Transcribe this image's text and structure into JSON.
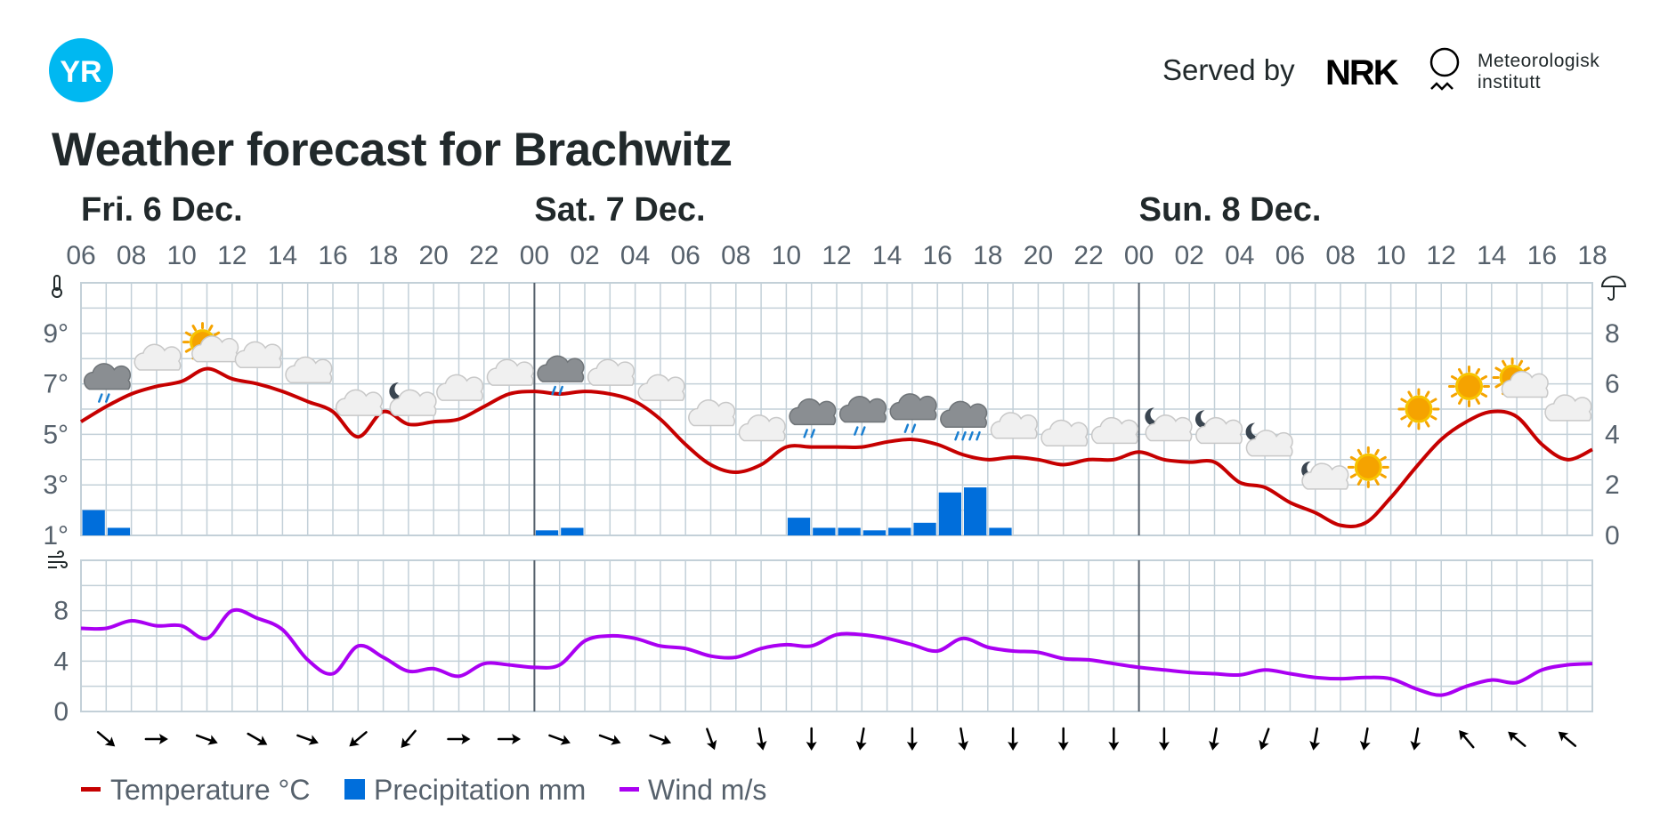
{
  "header": {
    "served_by": "Served by",
    "nrk_logo": "NRK",
    "met_line1": "Meteorologisk",
    "met_line2": "institutt",
    "yr_logo": "YR"
  },
  "title": "Weather forecast for Brachwitz",
  "legend": {
    "temperature": "Temperature °C",
    "precipitation": "Precipitation mm",
    "wind": "Wind m/s"
  },
  "colors": {
    "temperature": "#c60000",
    "precipitation": "#006edb",
    "wind": "#aa00f2",
    "yr": "#00b8f1",
    "grid": "#c3d0d8"
  },
  "chart_data": {
    "type": "line",
    "days": [
      {
        "label": "Fri. 6 Dec.",
        "start_hour": 6
      },
      {
        "label": "Sat. 7 Dec.",
        "start_hour": 24
      },
      {
        "label": "Sun. 8 Dec.",
        "start_hour": 48
      }
    ],
    "x_ticks": [
      "06",
      "08",
      "10",
      "12",
      "14",
      "16",
      "18",
      "20",
      "22",
      "00",
      "02",
      "04",
      "06",
      "08",
      "10",
      "12",
      "14",
      "16",
      "18",
      "20",
      "22",
      "00",
      "02",
      "04",
      "06",
      "08",
      "10",
      "12",
      "14",
      "16",
      "18"
    ],
    "x_unit": "hours from Fri. 00",
    "x_range": [
      6,
      66
    ],
    "temperature": {
      "y_ticks": [
        "9°",
        "7°",
        "5°",
        "3°",
        "1°"
      ],
      "ylim": [
        1,
        11
      ],
      "x": [
        6,
        7,
        8,
        9,
        10,
        11,
        12,
        13,
        14,
        15,
        16,
        17,
        18,
        19,
        20,
        21,
        22,
        23,
        24,
        25,
        26,
        27,
        28,
        29,
        30,
        31,
        32,
        33,
        34,
        35,
        36,
        37,
        38,
        39,
        40,
        41,
        42,
        43,
        44,
        45,
        46,
        47,
        48,
        49,
        50,
        51,
        52,
        53,
        54,
        55,
        56,
        57,
        58,
        59,
        60,
        61,
        62,
        63,
        64,
        65,
        66
      ],
      "values": [
        5.5,
        6.1,
        6.6,
        6.9,
        7.1,
        7.6,
        7.2,
        7.0,
        6.7,
        6.3,
        5.9,
        4.9,
        5.9,
        5.4,
        5.5,
        5.6,
        6.1,
        6.6,
        6.7,
        6.6,
        6.7,
        6.6,
        6.3,
        5.6,
        4.6,
        3.8,
        3.5,
        3.8,
        4.5,
        4.5,
        4.5,
        4.5,
        4.7,
        4.8,
        4.6,
        4.2,
        4.0,
        4.1,
        4.0,
        3.8,
        4.0,
        4.0,
        4.3,
        4.0,
        3.9,
        3.9,
        3.1,
        2.9,
        2.3,
        1.9,
        1.4,
        1.5,
        2.5,
        3.7,
        4.8,
        5.5,
        5.9,
        5.7,
        4.6,
        4.0,
        4.4
      ]
    },
    "precipitation": {
      "y_ticks": [
        "8",
        "6",
        "4",
        "2",
        "0"
      ],
      "ylim": [
        0,
        10
      ],
      "bars": [
        {
          "start": 6,
          "value": 1.0
        },
        {
          "start": 7,
          "value": 0.3
        },
        {
          "start": 24,
          "value": 0.2
        },
        {
          "start": 25,
          "value": 0.3
        },
        {
          "start": 34,
          "value": 0.7
        },
        {
          "start": 35,
          "value": 0.3
        },
        {
          "start": 36,
          "value": 0.3
        },
        {
          "start": 37,
          "value": 0.2
        },
        {
          "start": 38,
          "value": 0.3
        },
        {
          "start": 39,
          "value": 0.5
        },
        {
          "start": 40,
          "value": 1.7
        },
        {
          "start": 41,
          "value": 1.9
        },
        {
          "start": 42,
          "value": 0.3
        }
      ]
    },
    "wind": {
      "y_ticks": [
        "8",
        "4",
        "0"
      ],
      "ylim": [
        0,
        12
      ],
      "x": [
        6,
        7,
        8,
        9,
        10,
        11,
        12,
        13,
        14,
        15,
        16,
        17,
        18,
        19,
        20,
        21,
        22,
        23,
        24,
        25,
        26,
        27,
        28,
        29,
        30,
        31,
        32,
        33,
        34,
        35,
        36,
        37,
        38,
        39,
        40,
        41,
        42,
        43,
        44,
        45,
        46,
        47,
        48,
        49,
        50,
        51,
        52,
        53,
        54,
        55,
        56,
        57,
        58,
        59,
        60,
        61,
        62,
        63,
        64,
        65,
        66
      ],
      "values": [
        6.6,
        6.6,
        7.2,
        6.8,
        6.8,
        5.8,
        8.0,
        7.4,
        6.5,
        4.1,
        3.0,
        5.2,
        4.3,
        3.2,
        3.4,
        2.8,
        3.8,
        3.7,
        3.5,
        3.7,
        5.6,
        6.0,
        5.8,
        5.2,
        5.0,
        4.4,
        4.3,
        5.0,
        5.3,
        5.2,
        6.1,
        6.1,
        5.8,
        5.3,
        4.8,
        5.8,
        5.1,
        4.8,
        4.7,
        4.2,
        4.1,
        3.8,
        3.5,
        3.3,
        3.1,
        3.0,
        2.9,
        3.3,
        3.0,
        2.7,
        2.6,
        2.7,
        2.6,
        1.8,
        1.3,
        2.0,
        2.5,
        2.3,
        3.3,
        3.7,
        3.8
      ]
    },
    "wind_arrows": [
      40,
      0,
      20,
      30,
      20,
      140,
      130,
      0,
      0,
      20,
      20,
      20,
      70,
      80,
      90,
      100,
      90,
      80,
      90,
      90,
      90,
      90,
      100,
      110,
      100,
      100,
      100,
      230,
      220,
      220
    ],
    "weather_icons": [
      {
        "hour": 7,
        "icon": "rain-cloud-icon",
        "temp": 7.0
      },
      {
        "hour": 9,
        "icon": "cloud-icon",
        "temp": 7.9
      },
      {
        "hour": 11,
        "icon": "partly-sunny-icon",
        "temp": 8.3
      },
      {
        "hour": 13,
        "icon": "cloud-icon",
        "temp": 8.0
      },
      {
        "hour": 15,
        "icon": "cloud-icon",
        "temp": 7.4
      },
      {
        "hour": 17,
        "icon": "cloud-icon",
        "temp": 6.1
      },
      {
        "hour": 19,
        "icon": "night-cloud-icon",
        "temp": 6.1
      },
      {
        "hour": 21,
        "icon": "cloud-icon",
        "temp": 6.7
      },
      {
        "hour": 23,
        "icon": "cloud-icon",
        "temp": 7.3
      },
      {
        "hour": 25,
        "icon": "rain-cloud-icon",
        "temp": 7.3
      },
      {
        "hour": 27,
        "icon": "cloud-icon",
        "temp": 7.3
      },
      {
        "hour": 29,
        "icon": "cloud-icon",
        "temp": 6.7
      },
      {
        "hour": 31,
        "icon": "cloud-icon",
        "temp": 5.7
      },
      {
        "hour": 33,
        "icon": "cloud-icon",
        "temp": 5.1
      },
      {
        "hour": 35,
        "icon": "rain-cloud-icon",
        "temp": 5.6
      },
      {
        "hour": 37,
        "icon": "rain-cloud-icon",
        "temp": 5.7
      },
      {
        "hour": 39,
        "icon": "rain-cloud-icon",
        "temp": 5.8
      },
      {
        "hour": 41,
        "icon": "rain-cloud-icon",
        "temp": 5.5
      },
      {
        "hour": 43,
        "icon": "cloud-icon",
        "temp": 5.2
      },
      {
        "hour": 45,
        "icon": "cloud-icon",
        "temp": 4.9
      },
      {
        "hour": 47,
        "icon": "cloud-icon",
        "temp": 5.0
      },
      {
        "hour": 49,
        "icon": "night-cloud-icon",
        "temp": 5.1
      },
      {
        "hour": 51,
        "icon": "night-cloud-icon",
        "temp": 5.0
      },
      {
        "hour": 53,
        "icon": "night-cloud-icon",
        "temp": 4.5
      },
      {
        "hour": 55,
        "icon": "night-partly-icon",
        "temp": 3.4
      },
      {
        "hour": 57,
        "icon": "sun-icon",
        "temp": 3.7
      },
      {
        "hour": 59,
        "icon": "sun-icon",
        "temp": 6.0
      },
      {
        "hour": 61,
        "icon": "sun-icon",
        "temp": 6.9
      },
      {
        "hour": 63,
        "icon": "partly-sunny-icon",
        "temp": 6.9
      },
      {
        "hour": 65,
        "icon": "cloud-icon",
        "temp": 5.9
      }
    ]
  }
}
